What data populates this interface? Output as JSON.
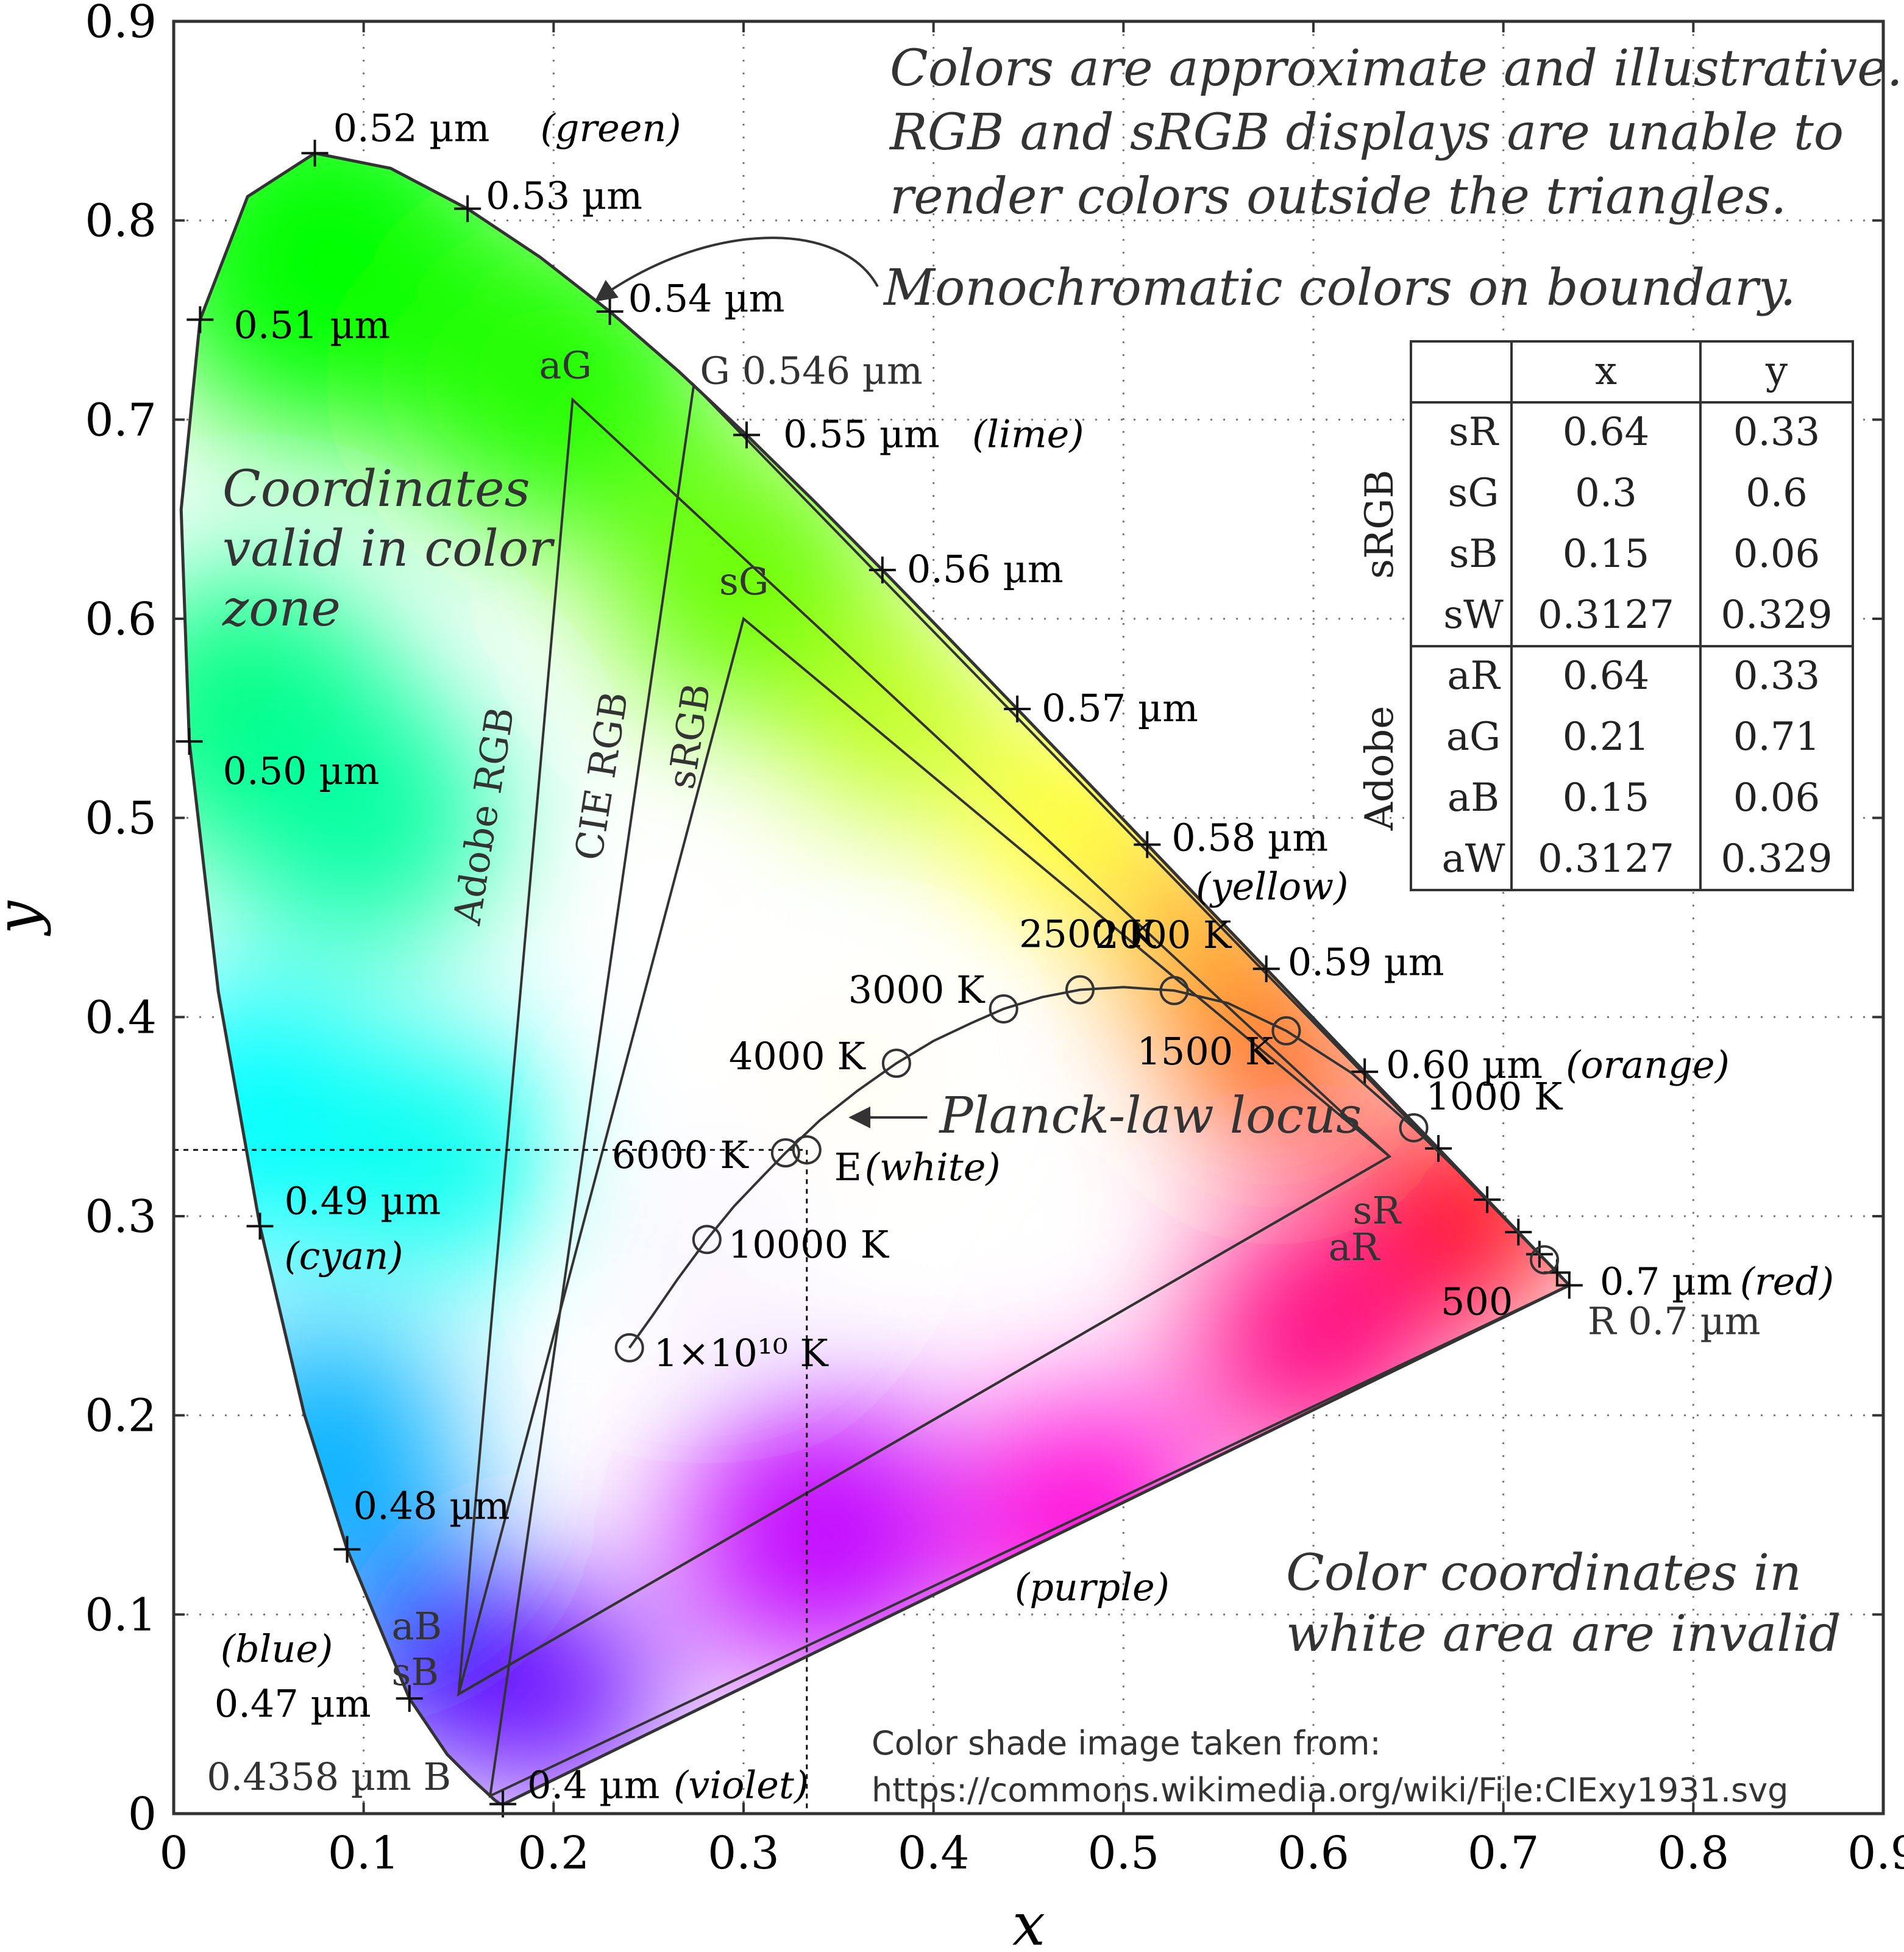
{
  "chart_data": {
    "type": "scatter",
    "xlabel": "x",
    "ylabel": "y",
    "xlim": [
      0,
      0.9
    ],
    "ylim": [
      0,
      0.9
    ],
    "grid": true,
    "x_ticks": [
      "0",
      "0.1",
      "0.2",
      "0.3",
      "0.4",
      "0.5",
      "0.6",
      "0.7",
      "0.8",
      "0.9"
    ],
    "y_ticks": [
      "0",
      "0.1",
      "0.2",
      "0.3",
      "0.4",
      "0.5",
      "0.6",
      "0.7",
      "0.8",
      "0.9"
    ],
    "spectral_locus": [
      [
        0.1741,
        0.005
      ],
      [
        0.1733,
        0.0048
      ],
      [
        0.1726,
        0.0048
      ],
      [
        0.1714,
        0.0051
      ],
      [
        0.1689,
        0.0069
      ],
      [
        0.1644,
        0.0109
      ],
      [
        0.1566,
        0.0177
      ],
      [
        0.144,
        0.0297
      ],
      [
        0.1241,
        0.0578
      ],
      [
        0.0913,
        0.1327
      ],
      [
        0.0687,
        0.2007
      ],
      [
        0.0454,
        0.295
      ],
      [
        0.0235,
        0.4127
      ],
      [
        0.0082,
        0.5384
      ],
      [
        0.0039,
        0.6548
      ],
      [
        0.0139,
        0.7502
      ],
      [
        0.0389,
        0.812
      ],
      [
        0.0743,
        0.8338
      ],
      [
        0.1142,
        0.8262
      ],
      [
        0.1547,
        0.8059
      ],
      [
        0.1929,
        0.7816
      ],
      [
        0.2296,
        0.7543
      ],
      [
        0.2658,
        0.7243
      ],
      [
        0.3016,
        0.6923
      ],
      [
        0.3373,
        0.6589
      ],
      [
        0.3731,
        0.6245
      ],
      [
        0.4087,
        0.5896
      ],
      [
        0.4441,
        0.5547
      ],
      [
        0.4788,
        0.5202
      ],
      [
        0.5125,
        0.4866
      ],
      [
        0.5448,
        0.4544
      ],
      [
        0.5752,
        0.4242
      ],
      [
        0.6029,
        0.3965
      ],
      [
        0.627,
        0.3725
      ],
      [
        0.6482,
        0.3514
      ],
      [
        0.6658,
        0.334
      ],
      [
        0.6801,
        0.3197
      ],
      [
        0.6915,
        0.3083
      ],
      [
        0.7006,
        0.2993
      ],
      [
        0.7079,
        0.292
      ],
      [
        0.714,
        0.2859
      ],
      [
        0.719,
        0.2809
      ],
      [
        0.723,
        0.277
      ],
      [
        0.726,
        0.274
      ],
      [
        0.7283,
        0.2717
      ],
      [
        0.73,
        0.27
      ],
      [
        0.7311,
        0.2689
      ],
      [
        0.732,
        0.268
      ],
      [
        0.7334,
        0.2666
      ],
      [
        0.7347,
        0.2653
      ]
    ],
    "wavelength_markers": [
      {
        "label": "0.52 µm",
        "note": "(green)",
        "x": 0.0743,
        "y": 0.8338
      },
      {
        "label": "0.53 µm",
        "note": "",
        "x": 0.1547,
        "y": 0.8059
      },
      {
        "label": "0.54 µm",
        "note": "",
        "x": 0.2296,
        "y": 0.7543
      },
      {
        "label": "0.55 µm",
        "note": "(lime)",
        "x": 0.3016,
        "y": 0.6923
      },
      {
        "label": "0.56 µm",
        "note": "",
        "x": 0.3731,
        "y": 0.6245
      },
      {
        "label": "0.57 µm",
        "note": "",
        "x": 0.4441,
        "y": 0.5547
      },
      {
        "label": "0.58 µm",
        "note": "(yellow)",
        "x": 0.5125,
        "y": 0.4866
      },
      {
        "label": "0.59 µm",
        "note": "",
        "x": 0.5752,
        "y": 0.4242
      },
      {
        "label": "0.60 µm",
        "note": "(orange)",
        "x": 0.627,
        "y": 0.3725
      },
      {
        "label": "0.51 µm",
        "note": "",
        "x": 0.0139,
        "y": 0.7502
      },
      {
        "label": "0.50 µm",
        "note": "",
        "x": 0.0082,
        "y": 0.5384
      },
      {
        "label": "0.49 µm",
        "note": "(cyan)",
        "x": 0.0454,
        "y": 0.295
      },
      {
        "label": "0.48 µm",
        "note": "",
        "x": 0.0913,
        "y": 0.1327
      },
      {
        "label": "0.47 µm",
        "note": "(blue)",
        "x": 0.1241,
        "y": 0.0578
      },
      {
        "label": "0.4 µm",
        "note": "(violet)",
        "x": 0.1733,
        "y": 0.0048
      },
      {
        "label": "0.7 µm",
        "note": "(red)",
        "x": 0.7347,
        "y": 0.2653
      }
    ],
    "unlabeled_markers": [
      [
        0.6658,
        0.334
      ],
      [
        0.6915,
        0.3083
      ],
      [
        0.7079,
        0.292
      ],
      [
        0.719,
        0.2809
      ],
      [
        0.7283,
        0.2717
      ]
    ],
    "planck_locus": {
      "label": "Planck-law locus",
      "points": [
        {
          "label": "1×10¹⁰ K",
          "x": 0.2399,
          "y": 0.2339
        },
        {
          "label": "10000 K",
          "x": 0.2807,
          "y": 0.2883
        },
        {
          "label": "6000 K",
          "x": 0.3221,
          "y": 0.3318
        },
        {
          "label": "4000 K",
          "x": 0.3805,
          "y": 0.3768
        },
        {
          "label": "3000 K",
          "x": 0.4369,
          "y": 0.4041
        },
        {
          "label": "2500 K",
          "x": 0.4771,
          "y": 0.4137
        },
        {
          "label": "2000 K",
          "x": 0.5267,
          "y": 0.4133
        },
        {
          "label": "1500 K",
          "x": 0.5857,
          "y": 0.3931
        },
        {
          "label": "1000 K",
          "x": 0.6528,
          "y": 0.3444
        },
        {
          "label": "500",
          "x": 0.7216,
          "y": 0.2781
        }
      ],
      "curve": [
        [
          0.2399,
          0.2339
        ],
        [
          0.252,
          0.25
        ],
        [
          0.265,
          0.268
        ],
        [
          0.2807,
          0.2883
        ],
        [
          0.295,
          0.305
        ],
        [
          0.31,
          0.32
        ],
        [
          0.3221,
          0.3318
        ],
        [
          0.34,
          0.348
        ],
        [
          0.36,
          0.363
        ],
        [
          0.3805,
          0.3768
        ],
        [
          0.4,
          0.388
        ],
        [
          0.42,
          0.397
        ],
        [
          0.4369,
          0.4041
        ],
        [
          0.4571,
          0.41
        ],
        [
          0.4771,
          0.4137
        ],
        [
          0.5,
          0.415
        ],
        [
          0.5267,
          0.4133
        ],
        [
          0.555,
          0.407
        ],
        [
          0.5857,
          0.3931
        ],
        [
          0.62,
          0.372
        ],
        [
          0.6528,
          0.3444
        ],
        [
          0.69,
          0.31
        ],
        [
          0.7216,
          0.2781
        ]
      ]
    },
    "white_point": {
      "label": "E",
      "note": "(white)",
      "x": 0.3333,
      "y": 0.3333
    },
    "triangles": [
      {
        "name": "sRGB",
        "R": [
          0.64,
          0.33
        ],
        "G": [
          0.3,
          0.6
        ],
        "B": [
          0.15,
          0.06
        ]
      },
      {
        "name": "Adobe RGB",
        "R": [
          0.64,
          0.33
        ],
        "G": [
          0.21,
          0.71
        ],
        "B": [
          0.15,
          0.06
        ]
      },
      {
        "name": "CIE RGB",
        "R": [
          0.7347,
          0.2653
        ],
        "G": [
          0.2738,
          0.7174
        ],
        "B": [
          0.1666,
          0.0089
        ]
      }
    ],
    "vertex_labels": {
      "aG": "aG",
      "sG": "sG",
      "G": "G 0.546 µm",
      "sR": "sR",
      "aR": "aR",
      "R": "R 0.7 µm",
      "aB": "aB",
      "sB": "sB",
      "B": "0.4358 µm B"
    },
    "table": {
      "columns": [
        "",
        "x",
        "y"
      ],
      "groups": [
        {
          "name": "sRGB",
          "rows": [
            [
              "sR",
              "0.64",
              "0.33"
            ],
            [
              "sG",
              "0.3",
              "0.6"
            ],
            [
              "sB",
              "0.15",
              "0.06"
            ],
            [
              "sW",
              "0.3127",
              "0.329"
            ]
          ]
        },
        {
          "name": "Adobe",
          "rows": [
            [
              "aR",
              "0.64",
              "0.33"
            ],
            [
              "aG",
              "0.21",
              "0.71"
            ],
            [
              "aB",
              "0.15",
              "0.06"
            ],
            [
              "aW",
              "0.3127",
              "0.329"
            ]
          ]
        }
      ]
    },
    "annotations": {
      "top_note": [
        "Colors are approximate and illustrative.",
        "RGB and sRGB displays are unable to",
        "render colors outside the triangles."
      ],
      "boundary_note": "Monochromatic colors on boundary.",
      "valid_note": [
        "Coordinates",
        "valid in color",
        "zone"
      ],
      "invalid_note": [
        "Color coordinates in",
        "white area are invalid"
      ],
      "purple": "(purple)",
      "credit": [
        "Color shade image taken from:",
        "https://commons.wikimedia.org/wiki/File:CIExy1931.svg"
      ]
    }
  }
}
